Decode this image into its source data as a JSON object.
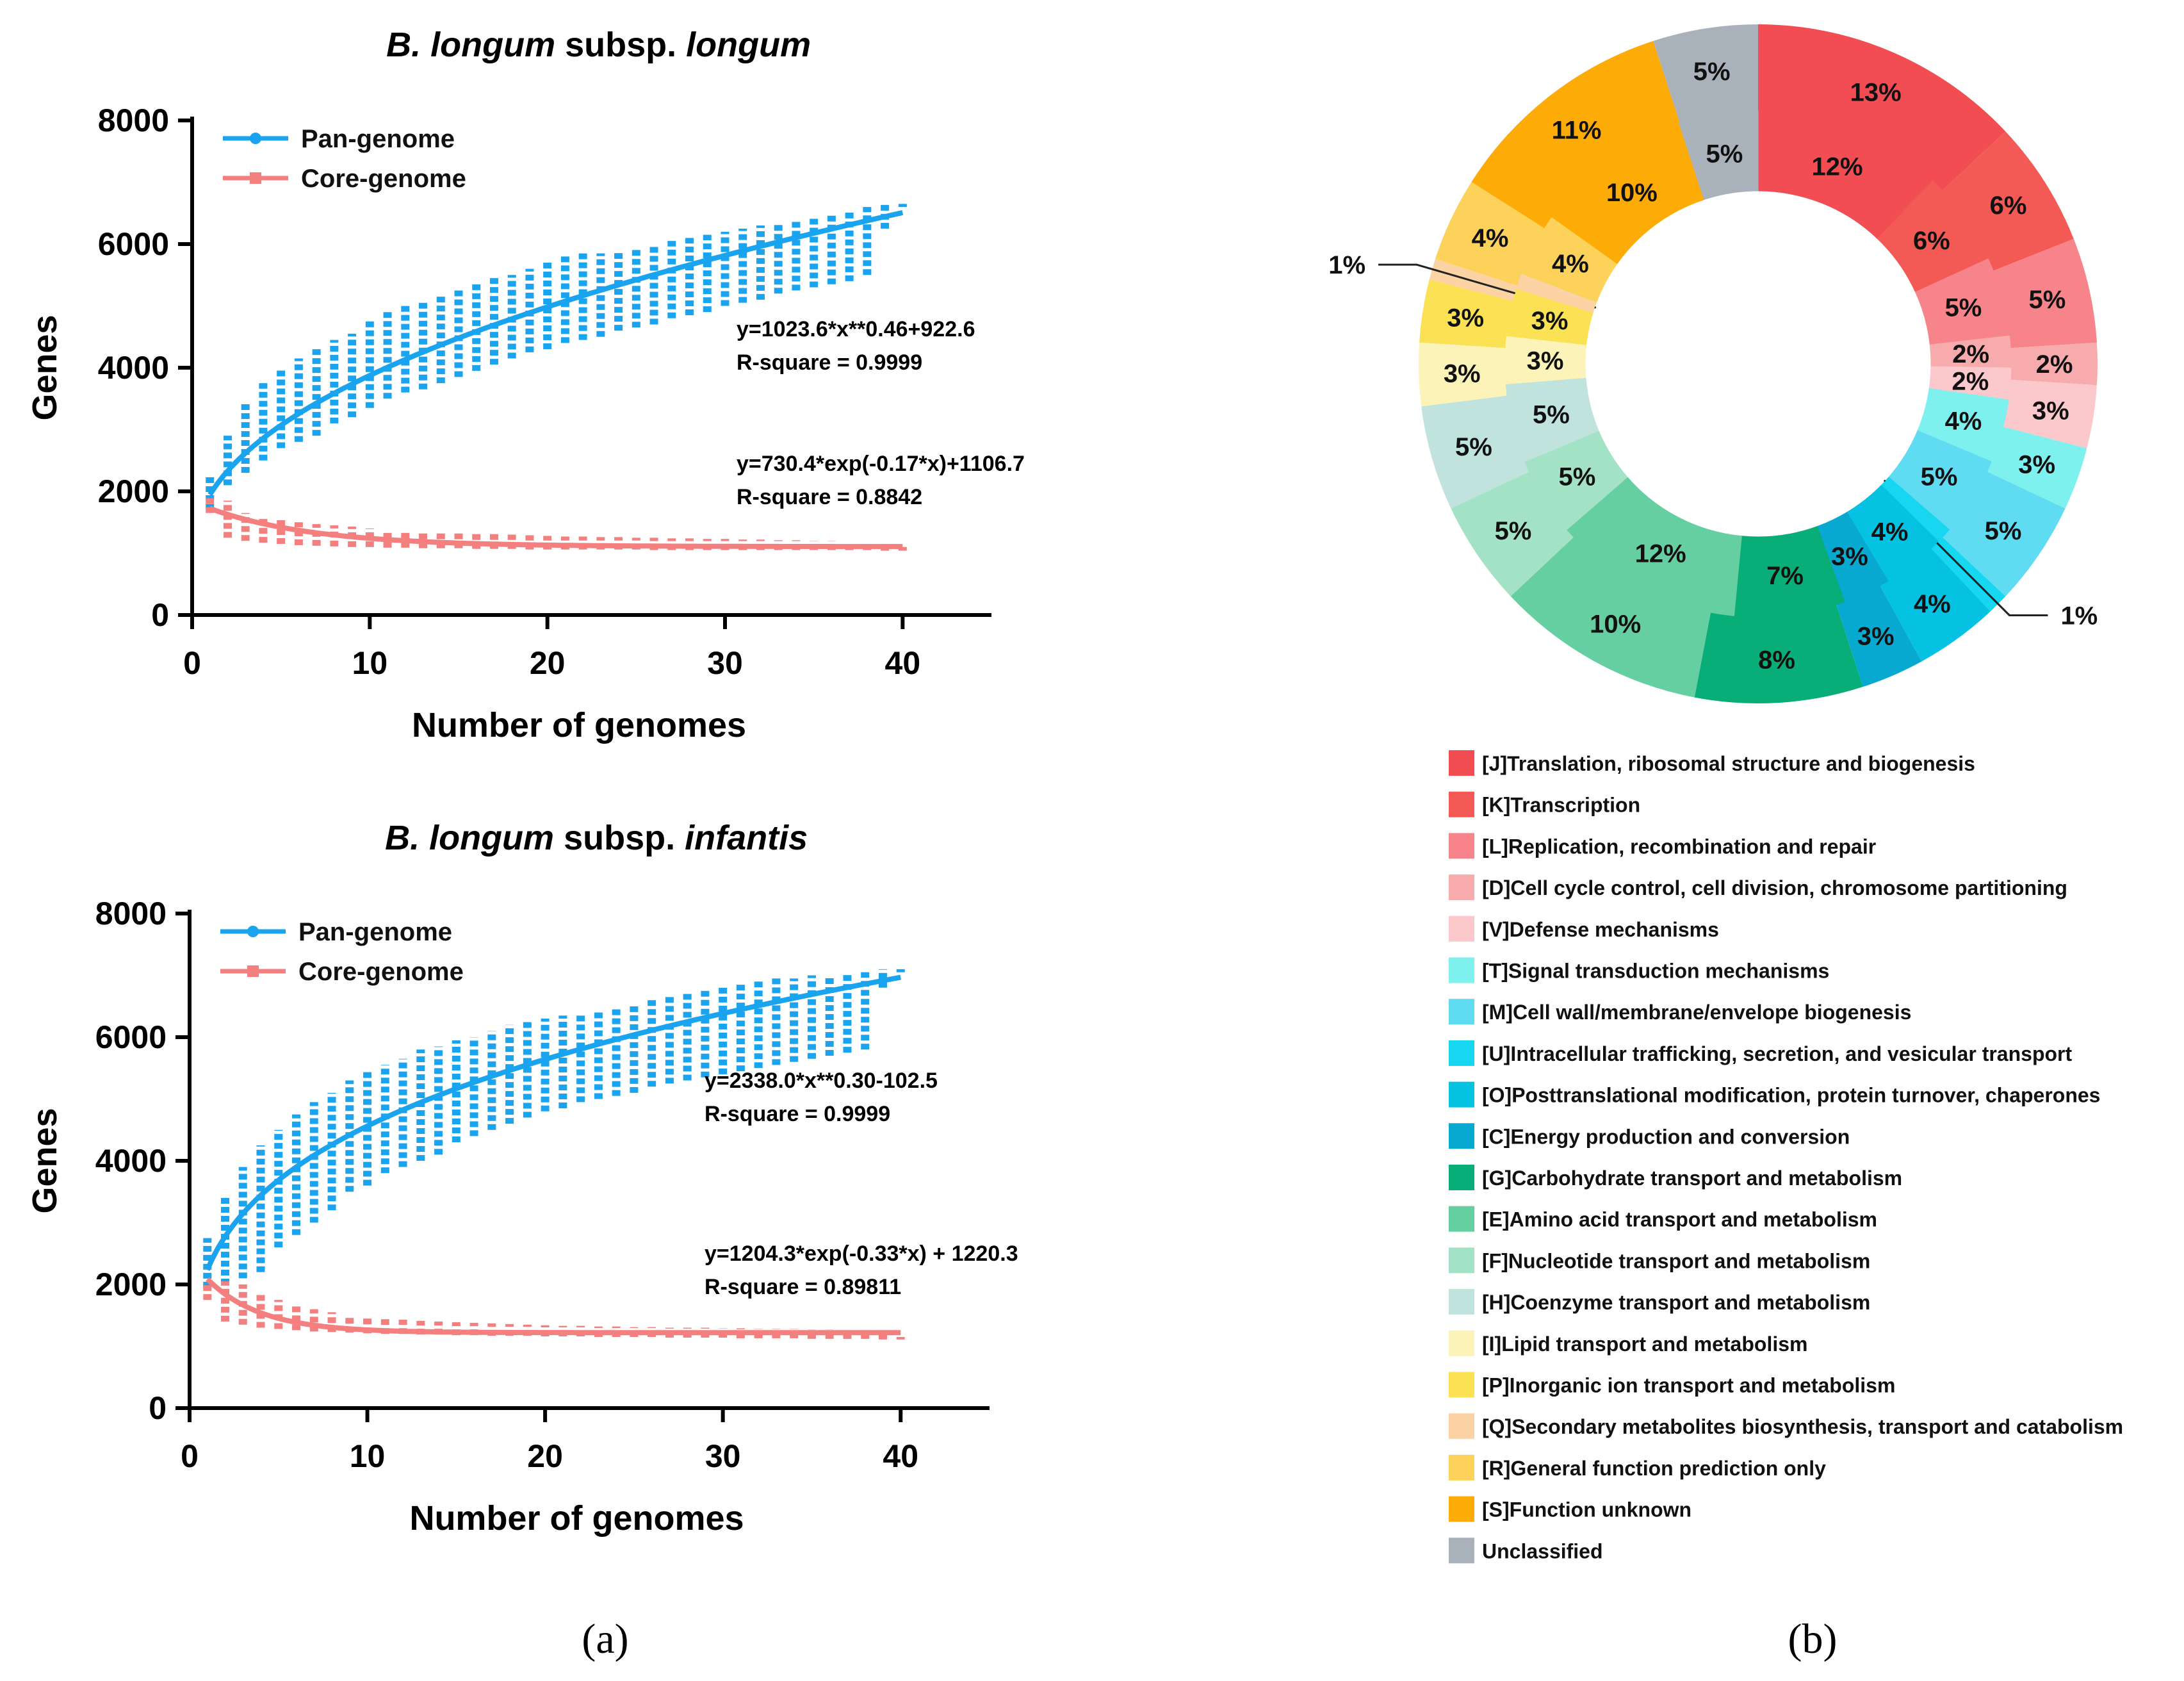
{
  "chart_data": [
    {
      "type": "scatter",
      "title_parts": [
        {
          "text": "B. longum",
          "italic": true
        },
        {
          "text": " subsp. ",
          "italic": false
        },
        {
          "text": "longum",
          "italic": true
        }
      ],
      "xlabel": "Number of genomes",
      "ylabel": "Genes",
      "xlim": [
        0,
        45
      ],
      "ylim": [
        0,
        8000
      ],
      "xticks": [
        "0",
        "10",
        "20",
        "30",
        "40"
      ],
      "yticks": [
        "0",
        "2000",
        "4000",
        "6000",
        "8000"
      ],
      "legend": [
        {
          "name": "Pan-genome",
          "color": "#1aa3ee"
        },
        {
          "name": "Core-genome",
          "color": "#f47f7f"
        }
      ],
      "series": [
        {
          "name": "Pan-genome",
          "fit": {
            "a": 1023.6,
            "b": 0.46,
            "c": 922.6,
            "form": "power"
          },
          "range_low": [
            1700,
            2100,
            2300,
            2500,
            2700,
            2800,
            2900,
            3100,
            3200,
            3350,
            3500,
            3600,
            3650,
            3750,
            3850,
            3950,
            4050,
            4150,
            4250,
            4300,
            4400,
            4450,
            4500,
            4600,
            4650,
            4700,
            4800,
            4850,
            4900,
            5000,
            5050,
            5100,
            5200,
            5250,
            5300,
            5350,
            5400,
            5500,
            6250,
            6600
          ],
          "range_high": [
            2250,
            2900,
            3450,
            3750,
            4000,
            4150,
            4300,
            4450,
            4550,
            4750,
            4900,
            5000,
            5100,
            5200,
            5250,
            5350,
            5450,
            5500,
            5600,
            5700,
            5800,
            5850,
            5850,
            5900,
            5950,
            6000,
            6050,
            6100,
            6150,
            6200,
            6250,
            6300,
            6350,
            6400,
            6450,
            6500,
            6550,
            6600,
            6650,
            6650
          ]
        },
        {
          "name": "Core-genome",
          "fit": {
            "a": 730.4,
            "b": -0.17,
            "c": 1106.7,
            "form": "exp"
          },
          "range_low": [
            1650,
            1250,
            1200,
            1170,
            1150,
            1130,
            1120,
            1110,
            1100,
            1100,
            1090,
            1090,
            1080,
            1080,
            1080,
            1070,
            1070,
            1070,
            1060,
            1060,
            1060,
            1060,
            1060,
            1060,
            1060,
            1050,
            1050,
            1050,
            1050,
            1050,
            1050,
            1050,
            1050,
            1050,
            1050,
            1050,
            1050,
            1050,
            1040,
            1040
          ],
          "range_high": [
            1900,
            1850,
            1650,
            1600,
            1550,
            1500,
            1470,
            1450,
            1430,
            1400,
            1380,
            1360,
            1350,
            1340,
            1330,
            1320,
            1310,
            1300,
            1290,
            1280,
            1270,
            1270,
            1260,
            1260,
            1250,
            1250,
            1240,
            1240,
            1230,
            1230,
            1220,
            1220,
            1210,
            1210,
            1200,
            1200,
            1190,
            1190,
            1150,
            1100
          ]
        }
      ],
      "annotations": [
        {
          "lines": [
            "y=1023.6*x**0.46+922.6",
            "R-square = 0.9999"
          ]
        },
        {
          "lines": [
            "y=730.4*exp(-0.17*x)+1106.7",
            "R-square = 0.8842"
          ]
        }
      ]
    },
    {
      "type": "scatter",
      "title_parts": [
        {
          "text": "B. longum",
          "italic": true
        },
        {
          "text": " subsp. ",
          "italic": false
        },
        {
          "text": "infantis",
          "italic": true
        }
      ],
      "xlabel": "Number of genomes",
      "ylabel": "Genes",
      "xlim": [
        0,
        45
      ],
      "ylim": [
        0,
        8000
      ],
      "xticks": [
        "0",
        "10",
        "20",
        "30",
        "40"
      ],
      "yticks": [
        "0",
        "2000",
        "4000",
        "6000",
        "8000"
      ],
      "legend": [
        {
          "name": "Pan-genome",
          "color": "#1aa3ee"
        },
        {
          "name": "Core-genome",
          "color": "#f47f7f"
        }
      ],
      "series": [
        {
          "name": "Pan-genome",
          "fit": {
            "a": 2338.0,
            "b": 0.3,
            "c": -102.5,
            "form": "power"
          },
          "range_low": [
            1950,
            2000,
            2100,
            2200,
            2600,
            2800,
            3000,
            3200,
            3500,
            3600,
            3800,
            3900,
            4000,
            4100,
            4300,
            4400,
            4500,
            4600,
            4700,
            4800,
            4850,
            4950,
            5000,
            5050,
            5100,
            5200,
            5250,
            5300,
            5350,
            5400,
            5450,
            5500,
            5550,
            5600,
            5650,
            5700,
            5750,
            5800,
            6800,
            7050
          ],
          "range_high": [
            2750,
            3450,
            3900,
            4250,
            4500,
            4750,
            4950,
            5100,
            5300,
            5450,
            5550,
            5650,
            5800,
            5850,
            5950,
            6000,
            6100,
            6200,
            6250,
            6300,
            6350,
            6400,
            6450,
            6500,
            6550,
            6600,
            6650,
            6700,
            6750,
            6800,
            6850,
            6900,
            6950,
            6950,
            7000,
            7000,
            7050,
            7050,
            7100,
            7100
          ]
        },
        {
          "name": "Core-genome",
          "fit": {
            "a": 1204.3,
            "b": -0.33,
            "c": 1220.3,
            "form": "exp"
          },
          "range_low": [
            1750,
            1400,
            1350,
            1300,
            1280,
            1260,
            1240,
            1230,
            1220,
            1210,
            1200,
            1200,
            1190,
            1190,
            1180,
            1180,
            1170,
            1170,
            1170,
            1160,
            1160,
            1160,
            1150,
            1150,
            1150,
            1150,
            1140,
            1140,
            1140,
            1140,
            1130,
            1130,
            1130,
            1130,
            1120,
            1120,
            1120,
            1120,
            1110,
            1110
          ],
          "range_high": [
            2000,
            2050,
            2000,
            1850,
            1750,
            1650,
            1600,
            1550,
            1500,
            1480,
            1450,
            1430,
            1410,
            1400,
            1390,
            1380,
            1370,
            1360,
            1350,
            1340,
            1330,
            1330,
            1320,
            1320,
            1310,
            1310,
            1300,
            1300,
            1300,
            1290,
            1290,
            1280,
            1280,
            1280,
            1270,
            1270,
            1260,
            1260,
            1200,
            1150
          ]
        }
      ],
      "annotations": [
        {
          "lines": [
            "y=2338.0*x**0.30-102.5",
            "R-square = 0.9999"
          ]
        },
        {
          "lines": [
            "y=1204.3*exp(-0.33*x) + 1220.3",
            "R-square = 0.89811"
          ]
        }
      ]
    },
    {
      "type": "pie",
      "variant": "nested-donut",
      "categories": [
        {
          "label": "[J]Translation, ribosomal structure and biogenesis",
          "color": "#f24d52",
          "outer": "13%",
          "inner": "12%",
          "outer_value": 13,
          "inner_value": 12
        },
        {
          "label": "[K]Transcription",
          "color": "#f45a55",
          "outer": "6%",
          "inner": "6%",
          "outer_value": 6,
          "inner_value": 6
        },
        {
          "label": "[L]Replication, recombination and repair",
          "color": "#f7848a",
          "outer": "5%",
          "inner": "5%",
          "outer_value": 5,
          "inner_value": 5
        },
        {
          "label": "[D]Cell cycle control, cell division, chromosome partitioning",
          "color": "#f8abac",
          "outer": "2%",
          "inner": "2%",
          "outer_value": 2,
          "inner_value": 2
        },
        {
          "label": "[V]Defense mechanisms",
          "color": "#fbc8cb",
          "outer": "3%",
          "inner": "2%",
          "outer_value": 3,
          "inner_value": 2
        },
        {
          "label": "[T]Signal transduction mechanisms",
          "color": "#7ef0ee",
          "outer": "3%",
          "inner": "4%",
          "outer_value": 3,
          "inner_value": 4
        },
        {
          "label": "[M]Cell wall/membrane/envelope biogenesis",
          "color": "#5fdcf1",
          "outer": "5%",
          "inner": "5%",
          "outer_value": 5,
          "inner_value": 5
        },
        {
          "label": "[U]Intracellular trafficking, secretion, and vesicular transport",
          "color": "#17d6f0",
          "outer": "1%",
          "inner": "1%",
          "outer_value": 1,
          "inner_value": 1
        },
        {
          "label": "[O]Posttranslational modification, protein turnover, chaperones",
          "color": "#05c2e2",
          "outer": "4%",
          "inner": "4%",
          "outer_value": 4,
          "inner_value": 4
        },
        {
          "label": "[C]Energy production and conversion",
          "color": "#08a9d0",
          "outer": "3%",
          "inner": "3%",
          "outer_value": 3,
          "inner_value": 3
        },
        {
          "label": "[G]Carbohydrate transport and metabolism",
          "color": "#08ad78",
          "outer": "8%",
          "inner": "7%",
          "outer_value": 8,
          "inner_value": 7
        },
        {
          "label": "[E]Amino acid transport and metabolism",
          "color": "#66cfa1",
          "outer": "10%",
          "inner": "12%",
          "outer_value": 10,
          "inner_value": 12
        },
        {
          "label": "[F]Nucleotide transport and metabolism",
          "color": "#a4e2c5",
          "outer": "5%",
          "inner": "5%",
          "outer_value": 5,
          "inner_value": 5
        },
        {
          "label": "[H]Coenzyme transport and metabolism",
          "color": "#c0e4dd",
          "outer": "5%",
          "inner": "5%",
          "outer_value": 5,
          "inner_value": 5
        },
        {
          "label": "[I]Lipid transport and metabolism",
          "color": "#fcf3b9",
          "outer": "3%",
          "inner": "3%",
          "outer_value": 3,
          "inner_value": 3
        },
        {
          "label": "[P]Inorganic ion transport and metabolism",
          "color": "#fbe255",
          "outer": "3%",
          "inner": "3%",
          "outer_value": 3,
          "inner_value": 3
        },
        {
          "label": "[Q]Secondary metabolites biosynthesis, transport and catabolism",
          "color": "#fbd3a5",
          "outer": "1%",
          "inner": "1%",
          "outer_value": 1,
          "inner_value": 1
        },
        {
          "label": "[R]General function prediction only",
          "color": "#fcd25a",
          "outer": "4%",
          "inner": "4%",
          "outer_value": 4,
          "inner_value": 4
        },
        {
          "label": "[S]Function unknown",
          "color": "#fdab06",
          "outer": "11%",
          "inner": "10%",
          "outer_value": 11,
          "inner_value": 10
        },
        {
          "label": "Unclassified",
          "color": "#a9b2bb",
          "outer": "5%",
          "inner": "5%",
          "outer_value": 5,
          "inner_value": 5
        }
      ]
    }
  ],
  "panel_labels": {
    "a": "(a)",
    "b": "(b)"
  }
}
